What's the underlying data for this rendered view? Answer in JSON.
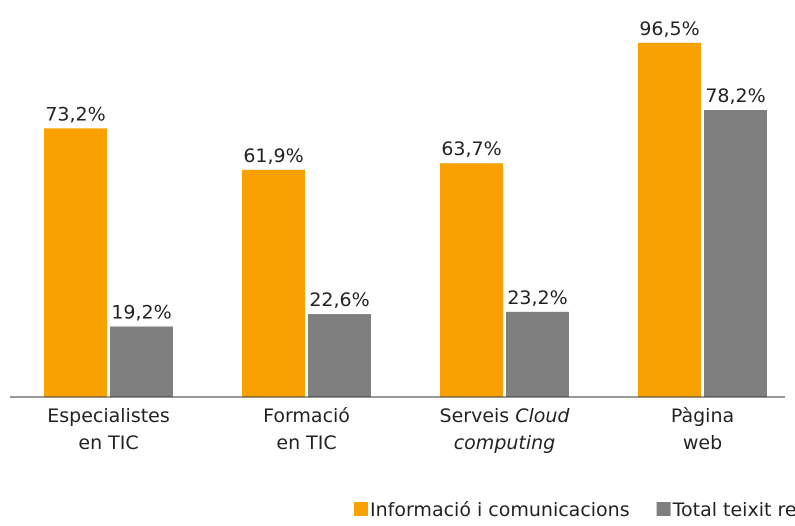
{
  "chart_data": {
    "type": "bar",
    "categories": [
      [
        "Especialistes",
        "en TIC"
      ],
      [
        "Formació",
        "en TIC"
      ],
      [
        "Serveis",
        "Cloud",
        "computing"
      ],
      [
        "Pàgina",
        "web"
      ]
    ],
    "series": [
      {
        "name": "Informació i comunicacions",
        "color": "#f9a100",
        "values": [
          73.2,
          61.9,
          63.7,
          96.5
        ],
        "value_labels": [
          "73,2%",
          "61,9%",
          "63,7%",
          "96,5%"
        ]
      },
      {
        "name": "Total teixit regional",
        "color": "#7f7f7f",
        "values": [
          19.2,
          22.6,
          23.2,
          78.2
        ],
        "value_labels": [
          "19,2%",
          "22,6%",
          "23,2%",
          "78,2%"
        ]
      }
    ],
    "legend": "bottom"
  }
}
